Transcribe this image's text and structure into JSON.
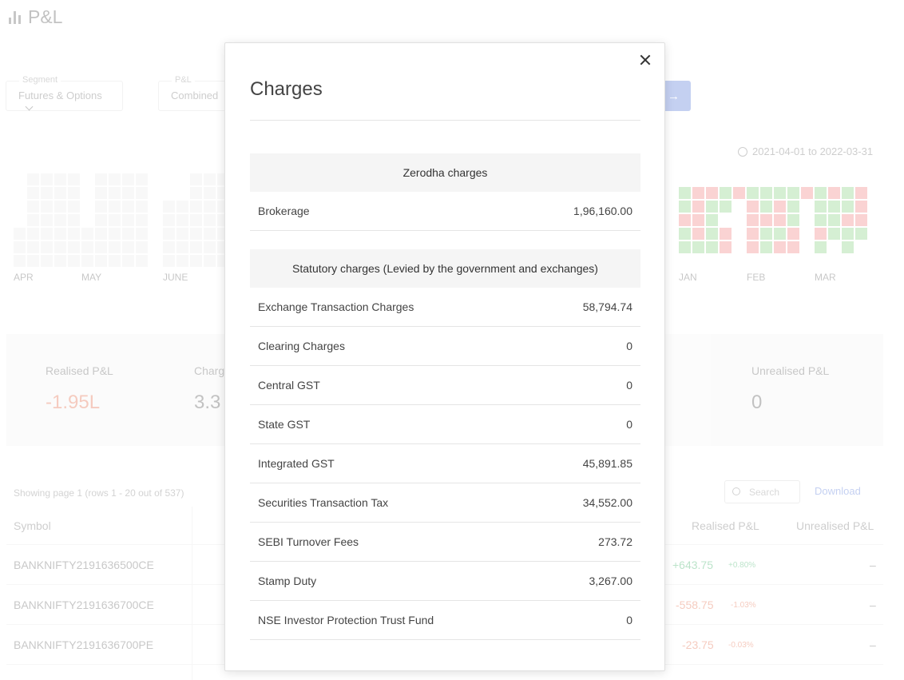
{
  "page": {
    "title": "P&L"
  },
  "filters": {
    "segment": {
      "label": "Segment",
      "value": "Futures & Options"
    },
    "pnl": {
      "label": "P&L",
      "value": "Combined"
    }
  },
  "date_range": "2021-04-01 to 2022-03-31",
  "heatmap": {
    "months": [
      "APR",
      "MAY",
      "JUNE",
      "JAN",
      "FEB",
      "MAR"
    ]
  },
  "stats": {
    "realised": {
      "label": "Realised P&L",
      "value": "-1.95L"
    },
    "charges": {
      "label": "Charg",
      "value": "3.3"
    },
    "unrealised": {
      "label": "Unrealised P&L",
      "value": "0"
    }
  },
  "table": {
    "meta": "Showing page 1 (rows 1 - 20 out of 537)",
    "search_placeholder": "Search",
    "download_label": "Download",
    "headers": {
      "symbol": "Symbol",
      "realised": "Realised P&L",
      "unrealised": "Unrealised P&L"
    },
    "rows": [
      {
        "symbol": "BANKNIFTY2191636500CE",
        "realised": "+643.75",
        "pct": "+0.80%",
        "unrealised": "–"
      },
      {
        "symbol": "BANKNIFTY2191636700CE",
        "realised": "-558.75",
        "pct": "-1.03%",
        "unrealised": "–"
      },
      {
        "symbol": "BANKNIFTY2191636700PE",
        "realised": "-23.75",
        "pct": "-0.03%",
        "unrealised": "–"
      }
    ]
  },
  "modal": {
    "title": "Charges",
    "zerodha": {
      "heading": "Zerodha charges",
      "rows": [
        {
          "label": "Brokerage",
          "value": "1,96,160.00"
        }
      ]
    },
    "statutory": {
      "heading": "Statutory charges (Levied by the government and exchanges)",
      "rows": [
        {
          "label": "Exchange Transaction Charges",
          "value": "58,794.74"
        },
        {
          "label": "Clearing Charges",
          "value": "0"
        },
        {
          "label": "Central GST",
          "value": "0"
        },
        {
          "label": "State GST",
          "value": "0"
        },
        {
          "label": "Integrated GST",
          "value": "45,891.85"
        },
        {
          "label": "Securities Transaction Tax",
          "value": "34,552.00"
        },
        {
          "label": "SEBI Turnover Fees",
          "value": "273.72"
        },
        {
          "label": "Stamp Duty",
          "value": "3,267.00"
        },
        {
          "label": "NSE Investor Protection Trust Fund",
          "value": "0"
        }
      ]
    }
  }
}
